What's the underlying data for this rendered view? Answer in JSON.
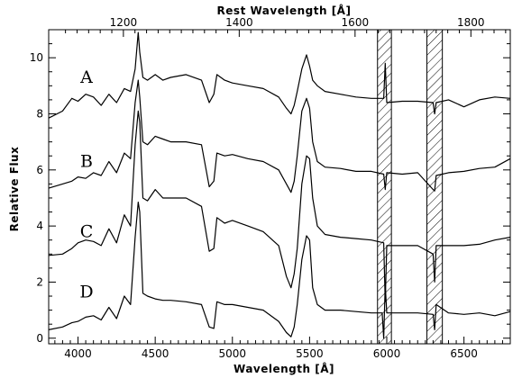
{
  "chart_data": {
    "type": "line",
    "title": "",
    "xlabel": "Wavelength [Å]",
    "ylabel": "Relative Flux",
    "x2label": "Rest Wavelength [Å]",
    "xlim": [
      3810,
      6800
    ],
    "ylim": [
      -0.2,
      11.0
    ],
    "rest_xlim": [
      1071,
      1868
    ],
    "xticks_major": [
      4000,
      4500,
      5000,
      5500,
      6000,
      6500
    ],
    "xtick_labels": [
      "4000",
      "4500",
      "5000",
      "5500",
      "6000",
      "6500"
    ],
    "yticks_major": [
      0,
      2,
      4,
      6,
      8,
      10
    ],
    "ytick_labels": [
      "0",
      "2",
      "4",
      "6",
      "8",
      "10"
    ],
    "rest_ticks_major": [
      1200,
      1400,
      1600,
      1800
    ],
    "rest_tick_labels": [
      "1200",
      "1400",
      "1600",
      "1800"
    ],
    "hatched_regions": [
      [
        5940,
        6030
      ],
      [
        6260,
        6360
      ]
    ],
    "grid": false,
    "legend": "none",
    "series_labels": [
      "A",
      "B",
      "C",
      "D"
    ],
    "series_label_y": [
      9.1,
      6.1,
      3.6,
      1.45
    ],
    "series": [
      {
        "name": "A",
        "x": [
          3810,
          3900,
          3960,
          4000,
          4050,
          4100,
          4150,
          4200,
          4250,
          4300,
          4340,
          4370,
          4390,
          4400,
          4420,
          4450,
          4500,
          4550,
          4600,
          4700,
          4800,
          4850,
          4880,
          4900,
          4950,
          5000,
          5100,
          5200,
          5300,
          5350,
          5380,
          5400,
          5420,
          5450,
          5480,
          5500,
          5520,
          5550,
          5600,
          5700,
          5800,
          5900,
          5980,
          5990,
          6000,
          6100,
          6200,
          6300,
          6310,
          6320,
          6400,
          6500,
          6600,
          6700,
          6800
        ],
        "y": [
          7.85,
          8.1,
          8.55,
          8.45,
          8.7,
          8.6,
          8.3,
          8.7,
          8.4,
          8.9,
          8.8,
          9.6,
          10.9,
          10.2,
          9.3,
          9.2,
          9.4,
          9.2,
          9.3,
          9.4,
          9.2,
          8.4,
          8.7,
          9.4,
          9.2,
          9.1,
          9.0,
          8.9,
          8.6,
          8.2,
          8.0,
          8.3,
          8.8,
          9.6,
          10.1,
          9.7,
          9.2,
          9.0,
          8.8,
          8.7,
          8.6,
          8.55,
          8.55,
          9.8,
          8.4,
          8.45,
          8.45,
          8.4,
          8.0,
          8.4,
          8.5,
          8.25,
          8.5,
          8.6,
          8.55
        ]
      },
      {
        "name": "B",
        "x": [
          3810,
          3900,
          3960,
          4000,
          4050,
          4100,
          4150,
          4200,
          4250,
          4300,
          4340,
          4370,
          4390,
          4400,
          4420,
          4450,
          4500,
          4550,
          4600,
          4700,
          4800,
          4850,
          4880,
          4900,
          4950,
          5000,
          5100,
          5200,
          5300,
          5350,
          5380,
          5400,
          5420,
          5450,
          5480,
          5500,
          5520,
          5550,
          5600,
          5700,
          5800,
          5900,
          5980,
          5990,
          6000,
          6100,
          6200,
          6300,
          6310,
          6320,
          6400,
          6500,
          6600,
          6700,
          6800
        ],
        "y": [
          5.35,
          5.5,
          5.6,
          5.75,
          5.7,
          5.9,
          5.8,
          6.3,
          5.9,
          6.6,
          6.4,
          8.4,
          9.2,
          8.6,
          7.0,
          6.9,
          7.2,
          7.1,
          7.0,
          7.0,
          6.9,
          5.4,
          5.6,
          6.6,
          6.5,
          6.55,
          6.4,
          6.3,
          6.0,
          5.5,
          5.2,
          5.6,
          6.5,
          8.1,
          8.55,
          8.2,
          7.0,
          6.3,
          6.1,
          6.05,
          5.95,
          5.95,
          5.85,
          5.3,
          5.9,
          5.85,
          5.9,
          5.3,
          5.25,
          5.8,
          5.9,
          5.95,
          6.05,
          6.1,
          6.4
        ]
      },
      {
        "name": "C",
        "x": [
          3810,
          3900,
          3960,
          4000,
          4050,
          4100,
          4150,
          4200,
          4250,
          4300,
          4340,
          4370,
          4390,
          4400,
          4420,
          4450,
          4500,
          4550,
          4600,
          4700,
          4800,
          4850,
          4880,
          4900,
          4950,
          5000,
          5100,
          5200,
          5300,
          5350,
          5380,
          5400,
          5420,
          5450,
          5480,
          5500,
          5520,
          5550,
          5600,
          5700,
          5800,
          5900,
          5980,
          5990,
          6000,
          6100,
          6200,
          6300,
          6310,
          6320,
          6400,
          6500,
          6600,
          6700,
          6800
        ],
        "y": [
          2.95,
          3.0,
          3.2,
          3.4,
          3.5,
          3.45,
          3.3,
          3.9,
          3.4,
          4.4,
          4.0,
          6.9,
          8.1,
          7.7,
          5.0,
          4.9,
          5.3,
          5.0,
          5.0,
          5.0,
          4.7,
          3.1,
          3.2,
          4.3,
          4.1,
          4.2,
          4.0,
          3.8,
          3.3,
          2.2,
          1.8,
          2.3,
          3.2,
          5.5,
          6.5,
          6.4,
          5.0,
          4.0,
          3.7,
          3.6,
          3.55,
          3.5,
          3.4,
          1.3,
          3.3,
          3.3,
          3.3,
          3.0,
          2.0,
          3.3,
          3.3,
          3.3,
          3.35,
          3.5,
          3.6
        ]
      },
      {
        "name": "D",
        "x": [
          3810,
          3900,
          3960,
          4000,
          4050,
          4100,
          4150,
          4200,
          4250,
          4300,
          4340,
          4370,
          4390,
          4400,
          4420,
          4450,
          4500,
          4550,
          4600,
          4700,
          4800,
          4850,
          4880,
          4900,
          4950,
          5000,
          5100,
          5200,
          5300,
          5350,
          5380,
          5400,
          5420,
          5450,
          5480,
          5500,
          5520,
          5550,
          5600,
          5700,
          5800,
          5900,
          5970,
          5980,
          5990,
          6000,
          6100,
          6200,
          6300,
          6310,
          6320,
          6400,
          6500,
          6600,
          6700,
          6800
        ],
        "y": [
          0.3,
          0.4,
          0.55,
          0.6,
          0.75,
          0.8,
          0.65,
          1.1,
          0.7,
          1.5,
          1.2,
          3.6,
          4.85,
          4.5,
          1.6,
          1.5,
          1.4,
          1.35,
          1.35,
          1.3,
          1.2,
          0.4,
          0.35,
          1.3,
          1.2,
          1.2,
          1.1,
          1.0,
          0.6,
          0.2,
          0.05,
          0.4,
          1.2,
          2.8,
          3.65,
          3.5,
          1.8,
          1.2,
          1.0,
          1.0,
          0.95,
          0.9,
          0.9,
          0.0,
          1.9,
          0.9,
          0.9,
          0.9,
          0.85,
          0.3,
          1.2,
          0.9,
          0.85,
          0.9,
          0.8,
          0.95
        ]
      }
    ]
  }
}
